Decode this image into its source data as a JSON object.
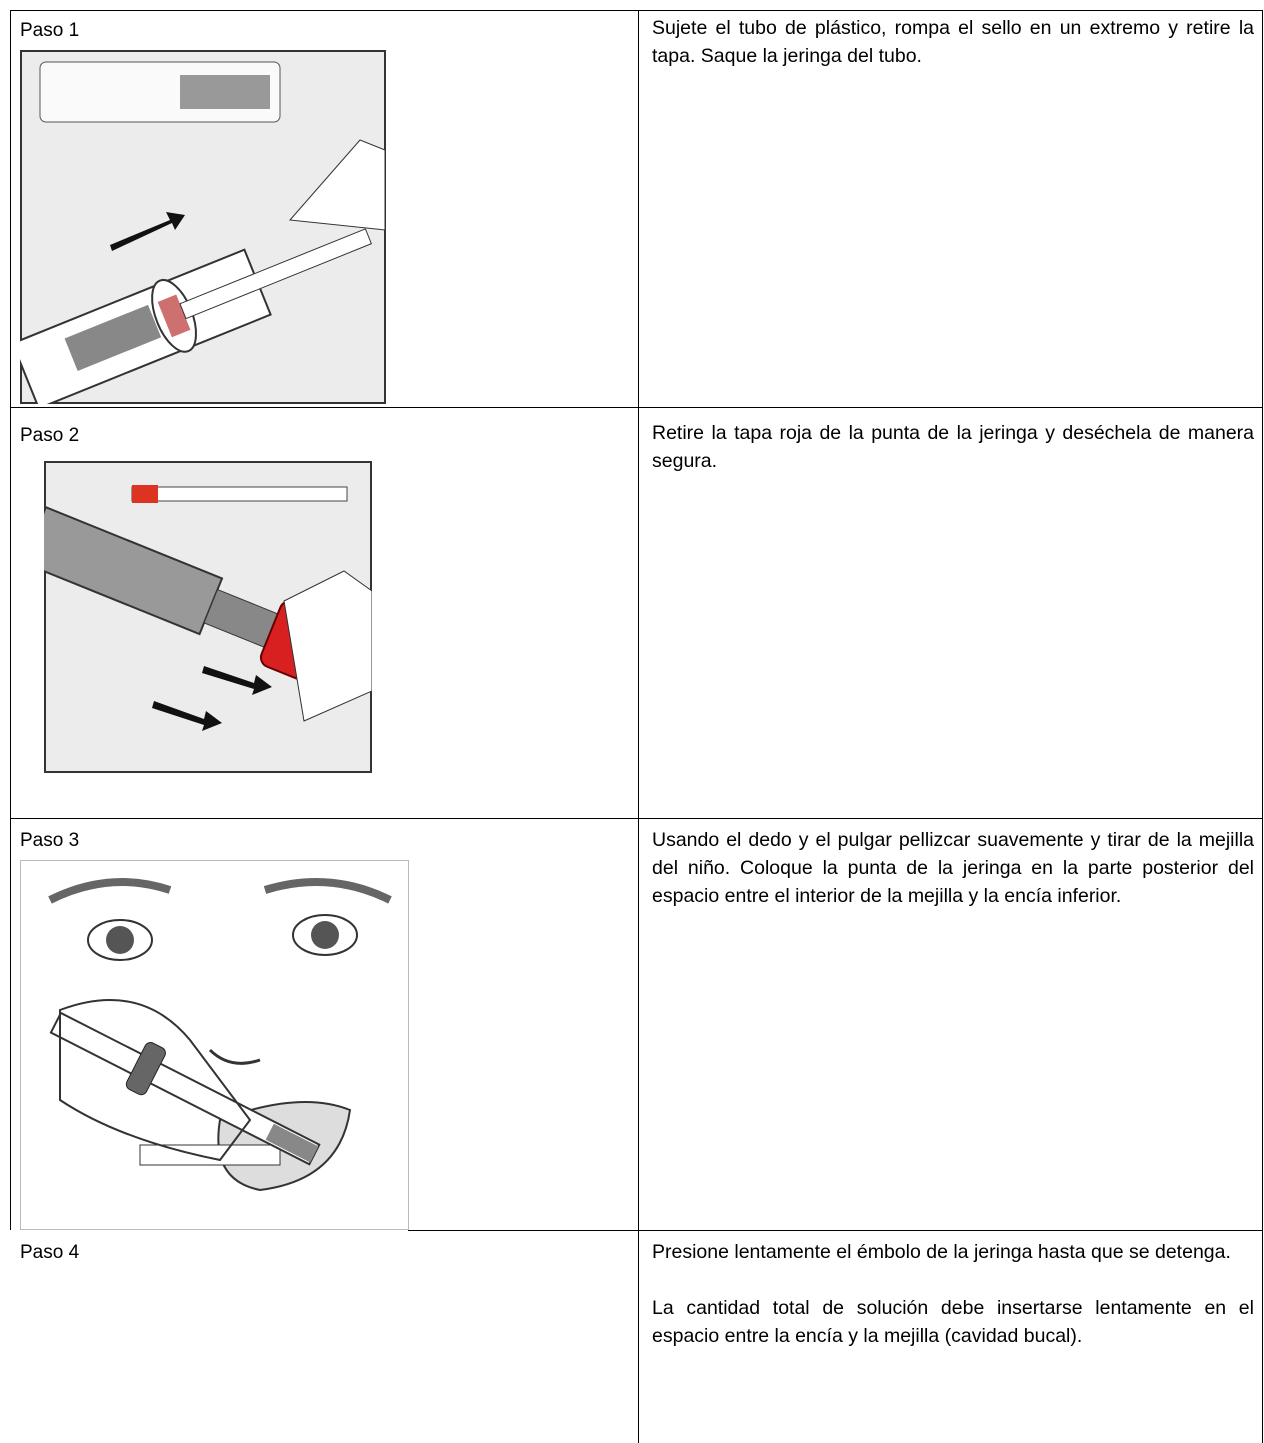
{
  "table": {
    "rows": [
      {
        "step": "Paso 1",
        "text": [
          "Sujete el tubo de plástico, rompa el sello en un extremo y retire la tapa. Saque la jeringa del tubo."
        ]
      },
      {
        "step": "Paso 2",
        "text": [
          "Retire la tapa roja de la punta de la jeringa y deséchela de manera segura."
        ]
      },
      {
        "step": "Paso 3",
        "text": [
          "Usando el dedo y el pulgar pellizcar suavemente y tirar de la mejilla del niño. Coloque la punta de la jeringa en la parte posterior del espacio entre el interior de la mejilla y la encía inferior."
        ]
      },
      {
        "step": "Paso 4",
        "text": [
          "Presione lentamente el émbolo de la jeringa hasta que se detenga.",
          "La cantidad total de solución debe insertarse lentamente en el espacio entre la encía y la mejilla (cavidad bucal)."
        ]
      }
    ]
  }
}
